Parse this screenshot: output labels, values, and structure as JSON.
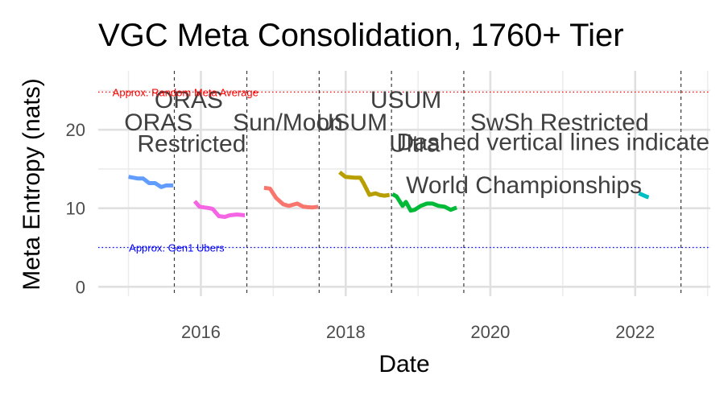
{
  "chart_data": {
    "type": "line",
    "title": "VGC Meta Consolidation, 1760+ Tier",
    "xlabel": "Date",
    "ylabel": "Meta Entropy (nats)",
    "xlim": [
      "2014-08-01",
      "2023-01-15"
    ],
    "ylim": [
      -1.2,
      27.5
    ],
    "x_ticks": [
      "2016-01-01",
      "2018-01-01",
      "2020-01-01",
      "2022-01-01"
    ],
    "x_tick_labels": [
      "2016",
      "2018",
      "2020",
      "2022"
    ],
    "y_ticks": [
      0,
      10,
      20
    ],
    "y_tick_labels": [
      "0",
      "10",
      "20"
    ],
    "grid": true,
    "legend": "none",
    "reference_lines": [
      {
        "y": 24.8,
        "label": "Approx. Random Meta Average",
        "color": "#ff0000",
        "label_x": "2015-10-15"
      },
      {
        "y": 5.0,
        "label": "Approx. Gen1 Ubers",
        "color": "#0000ff",
        "label_x": "2015-09-01"
      }
    ],
    "vertical_lines": [
      "2015-08-20",
      "2016-08-20",
      "2017-08-20",
      "2018-08-20",
      "2019-08-20",
      "2022-08-20"
    ],
    "era_labels": [
      {
        "text": "ORAS",
        "x": "2015-06-01",
        "y": 19.9
      },
      {
        "text": "ORAS",
        "x": "2015-11-01",
        "y": 22.8
      },
      {
        "text": "Restricted",
        "x": "2015-11-15",
        "y": 17.2
      },
      {
        "text": "Sun/Moon",
        "x": "2017-03-15",
        "y": 19.9
      },
      {
        "text": "USUM",
        "x": "2018-02-01",
        "y": 19.9
      },
      {
        "text": "USUM",
        "x": "2018-11-01",
        "y": 22.8
      },
      {
        "text": "Ultra",
        "x": "2018-12-15",
        "y": 17.2
      },
      {
        "text": "SwSh Restricted",
        "x": "2020-12-15",
        "y": 19.9
      },
      {
        "text": "Dashed vertical lines indicate",
        "x": "2018-09-15",
        "y": 17.4,
        "anchor": "start"
      },
      {
        "text": "World Championships",
        "x": "2018-11-01",
        "y": 11.9,
        "anchor": "start"
      }
    ],
    "series": [
      {
        "color": "#619cff",
        "points": [
          [
            "2015-01-01",
            14.0
          ],
          [
            "2015-02-15",
            13.8
          ],
          [
            "2015-03-15",
            13.8
          ],
          [
            "2015-04-15",
            13.2
          ],
          [
            "2015-05-15",
            13.2
          ],
          [
            "2015-06-15",
            12.7
          ],
          [
            "2015-07-10",
            12.9
          ],
          [
            "2015-08-15",
            12.9
          ]
        ]
      },
      {
        "color": "#f564e3",
        "points": [
          [
            "2015-12-01",
            10.9
          ],
          [
            "2015-12-25",
            10.2
          ],
          [
            "2016-02-15",
            10.0
          ],
          [
            "2016-03-01",
            9.9
          ],
          [
            "2016-04-01",
            9.0
          ],
          [
            "2016-05-01",
            8.9
          ],
          [
            "2016-05-25",
            9.1
          ],
          [
            "2016-07-01",
            9.2
          ],
          [
            "2016-08-10",
            9.1
          ]
        ]
      },
      {
        "color": "#f8766d",
        "points": [
          [
            "2016-11-15",
            12.6
          ],
          [
            "2016-12-15",
            12.5
          ],
          [
            "2017-01-15",
            11.3
          ],
          [
            "2017-02-20",
            10.5
          ],
          [
            "2017-03-20",
            10.3
          ],
          [
            "2017-05-01",
            10.6
          ],
          [
            "2017-06-01",
            10.2
          ],
          [
            "2017-07-15",
            10.1
          ],
          [
            "2017-08-15",
            10.2
          ]
        ]
      },
      {
        "color": "#b79f00",
        "points": [
          [
            "2017-12-01",
            14.6
          ],
          [
            "2017-12-30",
            14.0
          ],
          [
            "2018-02-15",
            13.9
          ],
          [
            "2018-03-15",
            13.9
          ],
          [
            "2018-04-01",
            13.2
          ],
          [
            "2018-05-01",
            11.7
          ],
          [
            "2018-06-01",
            11.9
          ],
          [
            "2018-06-20",
            11.7
          ],
          [
            "2018-07-15",
            11.6
          ],
          [
            "2018-08-10",
            11.7
          ]
        ]
      },
      {
        "color": "#00ba38",
        "points": [
          [
            "2018-08-25",
            11.8
          ],
          [
            "2018-09-15",
            11.5
          ],
          [
            "2018-10-15",
            10.3
          ],
          [
            "2018-11-01",
            10.8
          ],
          [
            "2018-11-25",
            9.7
          ],
          [
            "2018-12-15",
            9.8
          ],
          [
            "2019-01-15",
            10.3
          ],
          [
            "2019-02-15",
            10.6
          ],
          [
            "2019-03-15",
            10.6
          ],
          [
            "2019-04-15",
            10.3
          ],
          [
            "2019-05-15",
            10.2
          ],
          [
            "2019-06-15",
            9.8
          ],
          [
            "2019-07-15",
            10.1
          ]
        ]
      },
      {
        "color": "#00bfc4",
        "points": [
          [
            "2022-01-20",
            11.9
          ],
          [
            "2022-02-25",
            11.5
          ],
          [
            "2022-03-10",
            11.4
          ]
        ]
      }
    ]
  }
}
